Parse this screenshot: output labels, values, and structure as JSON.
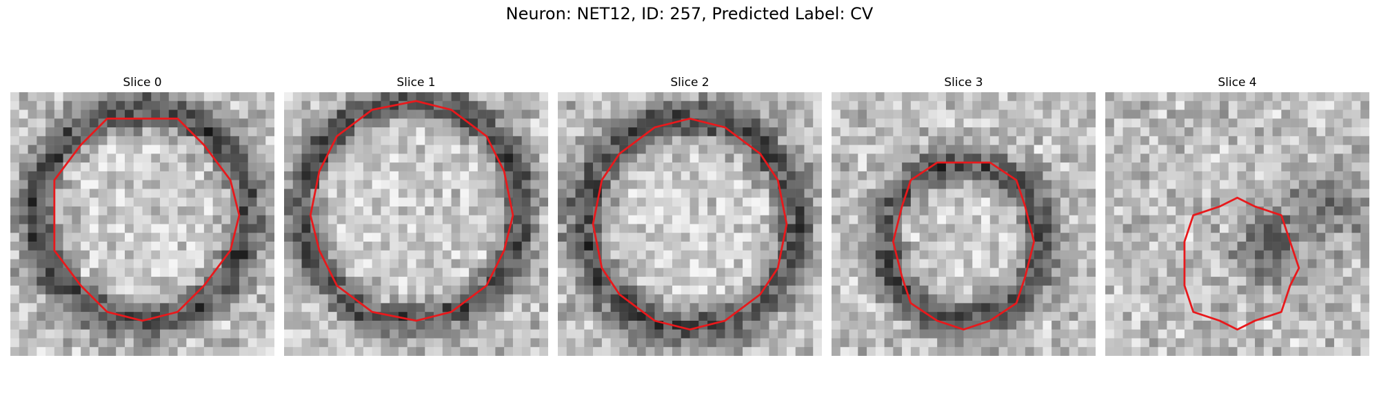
{
  "title": "Neuron: NET12, ID: 257, Predicted Label: CV",
  "contour_color": "#e8191c",
  "panels": [
    {
      "label": "Slice 0",
      "seed": 11,
      "ring": "dark",
      "contour_size": "large"
    },
    {
      "label": "Slice 1",
      "seed": 23,
      "ring": "dark",
      "contour_size": "large"
    },
    {
      "label": "Slice 2",
      "seed": 37,
      "ring": "dark",
      "contour_size": "large"
    },
    {
      "label": "Slice 3",
      "seed": 41,
      "ring": "dark",
      "contour_size": "medium"
    },
    {
      "label": "Slice 4",
      "seed": 59,
      "ring": "none",
      "contour_size": "small"
    }
  ]
}
